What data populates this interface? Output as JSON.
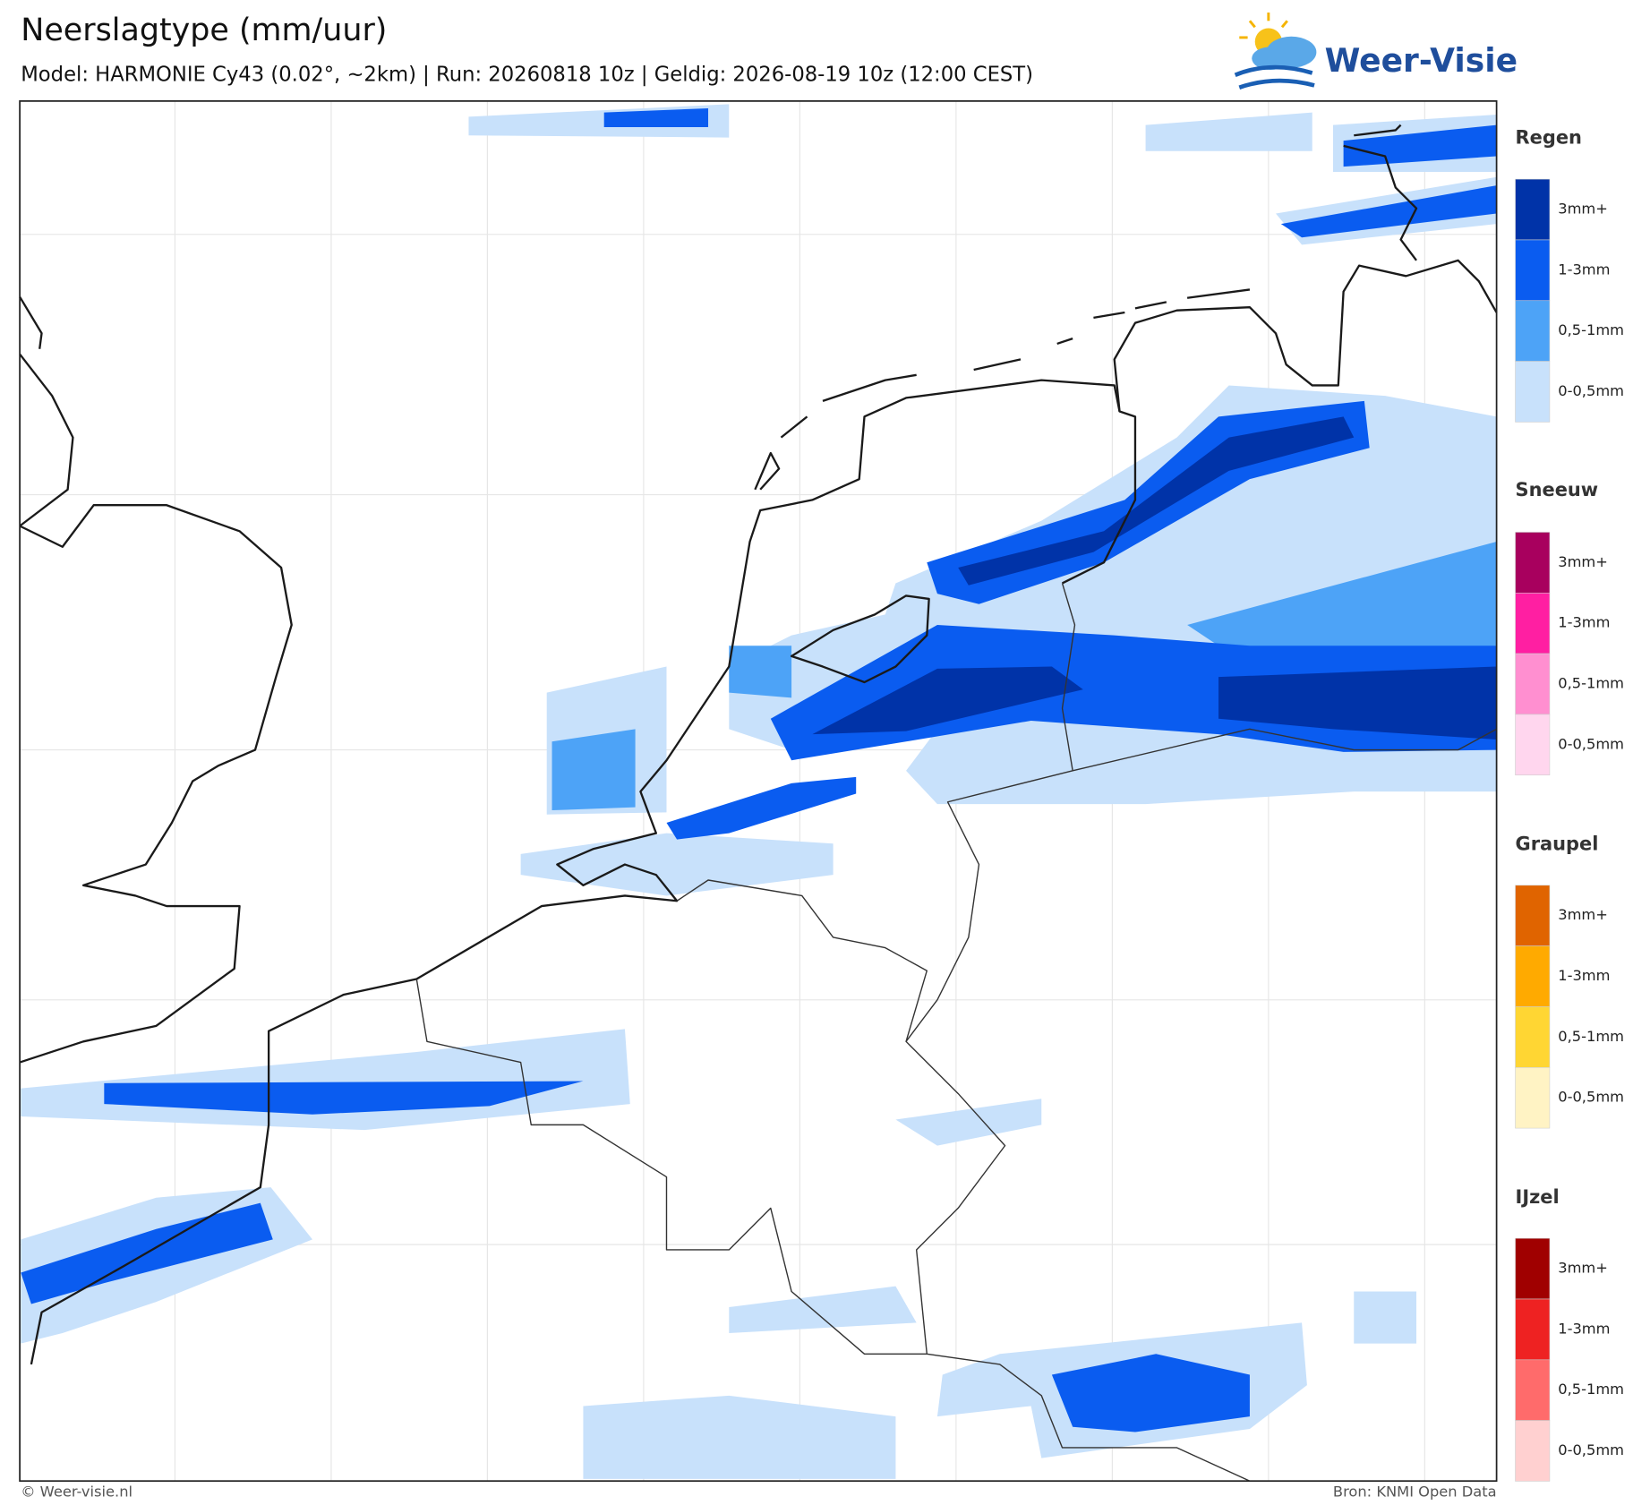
{
  "header": {
    "title": "Neerslagtype (mm/uur)",
    "subtitle": "Model: HARMONIE Cy43 (0.02°, ~2km)  |  Run: 20260818 10z  |  Geldig: 2026-08-19 10z (12:00 CEST)"
  },
  "logo": {
    "text": "Weer-Visie"
  },
  "legend": {
    "groups": [
      {
        "title": "Regen",
        "items": [
          {
            "label": "3mm+",
            "color": "#0033a8"
          },
          {
            "label": "1-3mm",
            "color": "#0a5cf0"
          },
          {
            "label": "0,5-1mm",
            "color": "#4da3f7"
          },
          {
            "label": "0-0,5mm",
            "color": "#c8e1fb"
          }
        ]
      },
      {
        "title": "Sneeuw",
        "items": [
          {
            "label": "3mm+",
            "color": "#a8005e"
          },
          {
            "label": "1-3mm",
            "color": "#ff1fa2"
          },
          {
            "label": "0,5-1mm",
            "color": "#ff8fd0"
          },
          {
            "label": "0-0,5mm",
            "color": "#ffd6ee"
          }
        ]
      },
      {
        "title": "Graupel",
        "items": [
          {
            "label": "3mm+",
            "color": "#e06400"
          },
          {
            "label": "1-3mm",
            "color": "#ffaa00"
          },
          {
            "label": "0,5-1mm",
            "color": "#ffd633"
          },
          {
            "label": "0-0,5mm",
            "color": "#fff3c4"
          }
        ]
      },
      {
        "title": "IJzel",
        "items": [
          {
            "label": "3mm+",
            "color": "#a00000"
          },
          {
            "label": "1-3mm",
            "color": "#ee2222"
          },
          {
            "label": "0,5-1mm",
            "color": "#ff6b6b"
          },
          {
            "label": "0-0,5mm",
            "color": "#ffd0d0"
          }
        ]
      }
    ]
  },
  "footer": {
    "left": "© Weer-visie.nl",
    "right": "Bron: KNMI Open Data"
  }
}
